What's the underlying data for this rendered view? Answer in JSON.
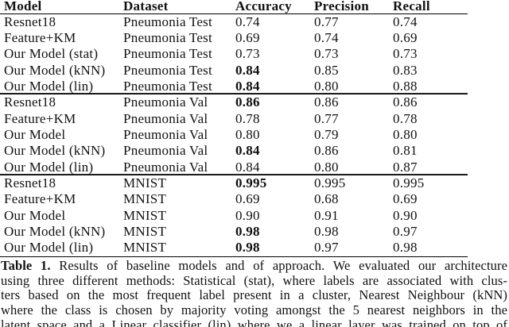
{
  "page": {
    "background": "#ffffff",
    "text_color": "#111111",
    "rule_color": "#000000"
  },
  "table": {
    "columns": [
      "Model",
      "Dataset",
      "Accuracy",
      "Precision",
      "Recall"
    ],
    "rows": [
      {
        "model": "Resnet18",
        "dataset": "Pneumonia Test",
        "accuracy": "0.74",
        "accuracy_bold": false,
        "precision": "0.77",
        "recall": "0.74",
        "rule_above": false
      },
      {
        "model": "Feature+KM",
        "dataset": "Pneumonia Test",
        "accuracy": "0.69",
        "accuracy_bold": false,
        "precision": "0.74",
        "recall": "0.69",
        "rule_above": false
      },
      {
        "model": "Our Model (stat)",
        "dataset": "Pneumonia Test",
        "accuracy": "0.73",
        "accuracy_bold": false,
        "precision": "0.73",
        "recall": "0.73",
        "rule_above": false
      },
      {
        "model": "Our Model (kNN)",
        "dataset": "Pneumonia Test",
        "accuracy": "0.84",
        "accuracy_bold": true,
        "precision": "0.85",
        "recall": "0.83",
        "rule_above": false
      },
      {
        "model": "Our Model (lin)",
        "dataset": "Pneumonia Test",
        "accuracy": "0.84",
        "accuracy_bold": true,
        "precision": "0.80",
        "recall": "0.88",
        "rule_above": false
      },
      {
        "model": "Resnet18",
        "dataset": "Pneumonia Val",
        "accuracy": "0.86",
        "accuracy_bold": true,
        "precision": "0.86",
        "recall": "0.86",
        "rule_above": true
      },
      {
        "model": "Feature+KM",
        "dataset": "Pneumonia Val",
        "accuracy": "0.78",
        "accuracy_bold": false,
        "precision": "0.77",
        "recall": "0.78",
        "rule_above": false
      },
      {
        "model": "Our Model",
        "dataset": "Pneumonia Val",
        "accuracy": "0.80",
        "accuracy_bold": false,
        "precision": "0.79",
        "recall": "0.80",
        "rule_above": false
      },
      {
        "model": "Our Model (kNN)",
        "dataset": "Pneumonia Val",
        "accuracy": "0.84",
        "accuracy_bold": true,
        "precision": "0.86",
        "recall": "0.81",
        "rule_above": false
      },
      {
        "model": "Our Model (lin)",
        "dataset": "Pneumonia Val",
        "accuracy": "0.84",
        "accuracy_bold": false,
        "precision": "0.80",
        "recall": "0.87",
        "rule_above": false
      },
      {
        "model": "Resnet18",
        "dataset": "MNIST",
        "accuracy": "0.995",
        "accuracy_bold": true,
        "precision": "0.995",
        "recall": "0.995",
        "rule_above": true
      },
      {
        "model": "Feature+KM",
        "dataset": "MNIST",
        "accuracy": "0.69",
        "accuracy_bold": false,
        "precision": "0.68",
        "recall": "0.69",
        "rule_above": false
      },
      {
        "model": "Our Model",
        "dataset": "MNIST",
        "accuracy": "0.90",
        "accuracy_bold": false,
        "precision": "0.91",
        "recall": "0.90",
        "rule_above": false
      },
      {
        "model": "Our Model (kNN)",
        "dataset": "MNIST",
        "accuracy": "0.98",
        "accuracy_bold": true,
        "precision": "0.98",
        "recall": "0.97",
        "rule_above": false
      },
      {
        "model": "Our Model (lin)",
        "dataset": "MNIST",
        "accuracy": "0.98",
        "accuracy_bold": true,
        "precision": "0.97",
        "recall": "0.98",
        "rule_above": false
      }
    ]
  },
  "caption": {
    "label": "Table 1.",
    "lines": [
      "Results of baseline models and of approach. We evaluated our architecture",
      "using three different methods: Statistical (stat), where labels are associated with clus-",
      "ters based on the most frequent label present in a cluster, Nearest Neighbour (kNN)",
      "where the class is chosen by majority voting amongst the 5 nearest neighbors in the",
      "latent space and a Linear classifier (lin) where we a linear layer was trained on top of"
    ]
  }
}
